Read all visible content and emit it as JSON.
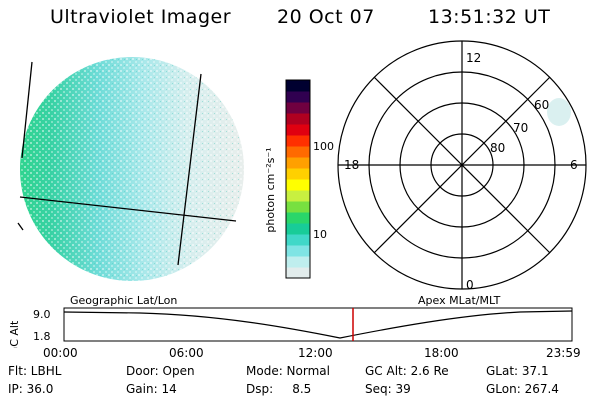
{
  "header": {
    "title": "Ultraviolet Imager",
    "date": "20 Oct 07",
    "time": "13:51:32 UT"
  },
  "colorbar": {
    "unit_label": "photon cm⁻²s⁻¹",
    "tick_100": "100",
    "tick_10": "10",
    "scale": "log",
    "colors": [
      "#e2ecec",
      "#bfeeee",
      "#7fe4e4",
      "#40d8c8",
      "#18cc98",
      "#2ad66a",
      "#78e040",
      "#c8f040",
      "#ffff00",
      "#ffd000",
      "#ffa000",
      "#ff6a00",
      "#ff3000",
      "#e00010",
      "#b00020",
      "#700040",
      "#300050",
      "#000030"
    ]
  },
  "polar": {
    "mlt_labels": {
      "top": "12",
      "left": "18",
      "right": "6",
      "bottom": "0"
    },
    "lat_labels": [
      "60",
      "70",
      "80"
    ]
  },
  "timeline": {
    "y_label": "GC Alt",
    "y_ticks": [
      "9.0",
      "1.8"
    ],
    "left_caption": "Geographic Lat/Lon",
    "right_caption": "Apex MLat/MLT",
    "x_ticks": [
      "00:00",
      "06:00",
      "12:00",
      "18:00",
      "23:59"
    ],
    "marker_color": "#cc0000",
    "curve_color": "#000000"
  },
  "footer": {
    "row1": {
      "flt": "Flt: LBHL",
      "door": "Door: Open",
      "mode": "Mode: Normal",
      "gcalt": "GC Alt: 2.6 Re",
      "glat": "GLat:  37.1"
    },
    "row2": {
      "ip": "IP: 36.0",
      "gain": "Gain: 14",
      "dsp": "Dsp:     8.5",
      "seq": "Seq: 39",
      "glon": "GLon: 267.4"
    }
  }
}
